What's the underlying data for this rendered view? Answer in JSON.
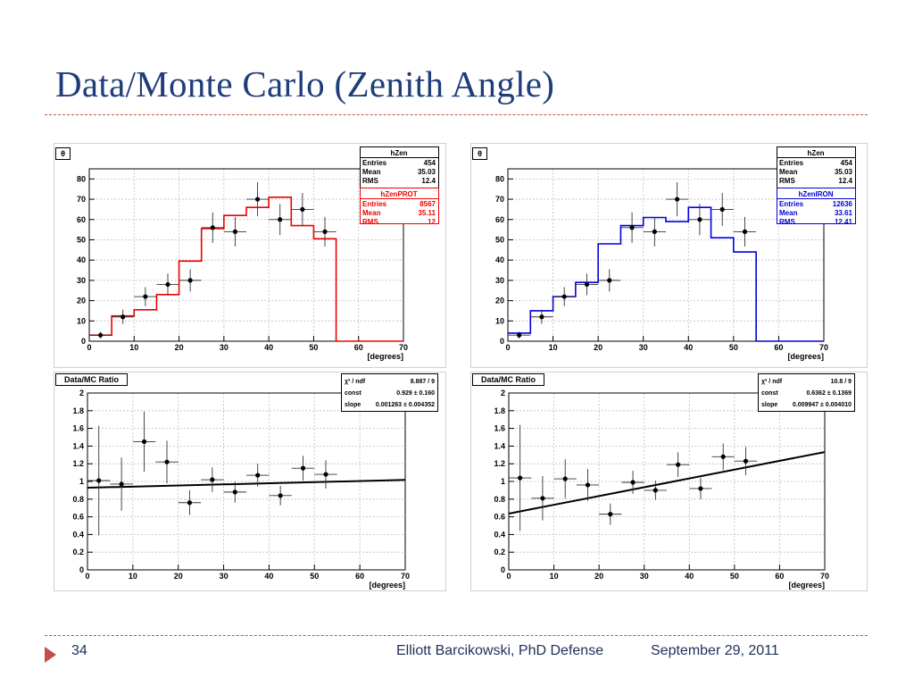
{
  "slide": {
    "title": "Data/Monte Carlo (Zenith Angle)",
    "page_number": "34",
    "author": "Elliott Barcikowski, PhD Defense",
    "date": "September 29, 2011",
    "colors": {
      "title": "#1f3d7a",
      "rule": "#c0504d",
      "footer": "#1f2f5a",
      "proton": "#ee0000",
      "iron": "#0000dd"
    }
  },
  "chart_data": [
    {
      "id": "hist-prot",
      "type": "histogram",
      "tag": "θ",
      "xlabel": "[degrees]",
      "xlim": [
        0,
        70
      ],
      "ylim": [
        0,
        85
      ],
      "xticks": [
        0,
        10,
        20,
        30,
        40,
        50,
        60,
        70
      ],
      "yticks": [
        0,
        10,
        20,
        30,
        40,
        50,
        60,
        70,
        80
      ],
      "bins": [
        0,
        5,
        10,
        15,
        20,
        25,
        30,
        35,
        40,
        45,
        50,
        55,
        60,
        65,
        70
      ],
      "mc": {
        "name": "hZenPROT",
        "color": "#ee0000",
        "values": [
          3,
          12.5,
          15.5,
          23,
          39.5,
          55.5,
          62,
          66,
          71,
          57,
          50.5,
          0,
          0,
          0
        ]
      },
      "data": {
        "x": [
          2.5,
          7.5,
          12.5,
          17.5,
          22.5,
          27.5,
          32.5,
          37.5,
          42.5,
          47.5,
          52.5
        ],
        "y": [
          3,
          12,
          22,
          28,
          30,
          56,
          54,
          70,
          60,
          65,
          54
        ],
        "yerr": [
          1.7,
          3.5,
          4.7,
          5.3,
          5.5,
          7.5,
          7.3,
          8.4,
          7.7,
          8.1,
          7.3
        ]
      },
      "stats": [
        {
          "title": "hZen",
          "color": "#000000",
          "rows": [
            [
              "Entries",
              "454"
            ],
            [
              "Mean",
              "35.03"
            ],
            [
              "RMS",
              "12.4"
            ]
          ]
        },
        {
          "title": "hZenPROT",
          "color": "#ee0000",
          "rows": [
            [
              "Entries",
              "8567"
            ],
            [
              "Mean",
              "35.11"
            ],
            [
              "RMS",
              "12"
            ]
          ]
        }
      ]
    },
    {
      "id": "hist-iron",
      "type": "histogram",
      "tag": "θ",
      "xlabel": "[degrees]",
      "xlim": [
        0,
        70
      ],
      "ylim": [
        0,
        85
      ],
      "xticks": [
        0,
        10,
        20,
        30,
        40,
        50,
        60,
        70
      ],
      "yticks": [
        0,
        10,
        20,
        30,
        40,
        50,
        60,
        70,
        80
      ],
      "bins": [
        0,
        5,
        10,
        15,
        20,
        25,
        30,
        35,
        40,
        45,
        50,
        55,
        60,
        65,
        70
      ],
      "mc": {
        "name": "hZenIRON",
        "color": "#0000dd",
        "values": [
          4,
          15,
          22,
          29,
          48,
          57,
          61,
          59,
          66,
          51,
          44,
          0,
          0,
          0
        ]
      },
      "data": {
        "x": [
          2.5,
          7.5,
          12.5,
          17.5,
          22.5,
          27.5,
          32.5,
          37.5,
          42.5,
          47.5,
          52.5
        ],
        "y": [
          3,
          12,
          22,
          28,
          30,
          56,
          54,
          70,
          60,
          65,
          54
        ],
        "yerr": [
          1.7,
          3.5,
          4.7,
          5.3,
          5.5,
          7.5,
          7.3,
          8.4,
          7.7,
          8.1,
          7.3
        ]
      },
      "stats": [
        {
          "title": "hZen",
          "color": "#000000",
          "rows": [
            [
              "Entries",
              "454"
            ],
            [
              "Mean",
              "35.03"
            ],
            [
              "RMS",
              "12.4"
            ]
          ]
        },
        {
          "title": "hZenIRON",
          "color": "#0000dd",
          "rows": [
            [
              "Entries",
              "12636"
            ],
            [
              "Mean",
              "33.61"
            ],
            [
              "RMS",
              "12.41"
            ]
          ]
        }
      ]
    },
    {
      "id": "ratio-prot",
      "type": "scatter",
      "tag": "Data/MC Ratio",
      "xlabel": "[degrees]",
      "xlim": [
        0,
        70
      ],
      "ylim": [
        0,
        2
      ],
      "xticks": [
        0,
        10,
        20,
        30,
        40,
        50,
        60,
        70
      ],
      "yticks": [
        0,
        0.2,
        0.4,
        0.6,
        0.8,
        1,
        1.2,
        1.4,
        1.6,
        1.8,
        2
      ],
      "data": {
        "x": [
          2.5,
          7.5,
          12.5,
          17.5,
          22.5,
          27.5,
          32.5,
          37.5,
          42.5,
          47.5,
          52.5
        ],
        "y": [
          1.01,
          0.97,
          1.45,
          1.22,
          0.76,
          1.02,
          0.88,
          1.07,
          0.84,
          1.15,
          1.08
        ],
        "yerr": [
          0.62,
          0.3,
          0.34,
          0.24,
          0.14,
          0.14,
          0.12,
          0.13,
          0.11,
          0.14,
          0.16
        ]
      },
      "fit": {
        "const": 0.929,
        "slope": 0.001263
      },
      "fitbox": [
        [
          "χ² / ndf",
          "8.887 / 9"
        ],
        [
          "const",
          "0.929 ± 0.160"
        ],
        [
          "slope",
          "0.001263 ± 0.004352"
        ]
      ]
    },
    {
      "id": "ratio-iron",
      "type": "scatter",
      "tag": "Data/MC Ratio",
      "xlabel": "[degrees]",
      "xlim": [
        0,
        70
      ],
      "ylim": [
        0,
        2
      ],
      "xticks": [
        0,
        10,
        20,
        30,
        40,
        50,
        60,
        70
      ],
      "yticks": [
        0,
        0.2,
        0.4,
        0.6,
        0.8,
        1,
        1.2,
        1.4,
        1.6,
        1.8,
        2
      ],
      "data": {
        "x": [
          2.5,
          7.5,
          12.5,
          17.5,
          22.5,
          27.5,
          32.5,
          37.5,
          42.5,
          47.5,
          52.5
        ],
        "y": [
          1.04,
          0.81,
          1.03,
          0.96,
          0.63,
          0.99,
          0.9,
          1.19,
          0.92,
          1.28,
          1.23
        ],
        "yerr": [
          0.6,
          0.25,
          0.22,
          0.18,
          0.12,
          0.13,
          0.11,
          0.14,
          0.12,
          0.15,
          0.16
        ]
      },
      "fit": {
        "const": 0.6362,
        "slope": 0.009947
      },
      "fitbox": [
        [
          "χ² / ndf",
          "10.8 / 9"
        ],
        [
          "const",
          "0.6362 ± 0.1369"
        ],
        [
          "slope",
          "0.009947 ± 0.004010"
        ]
      ]
    }
  ]
}
